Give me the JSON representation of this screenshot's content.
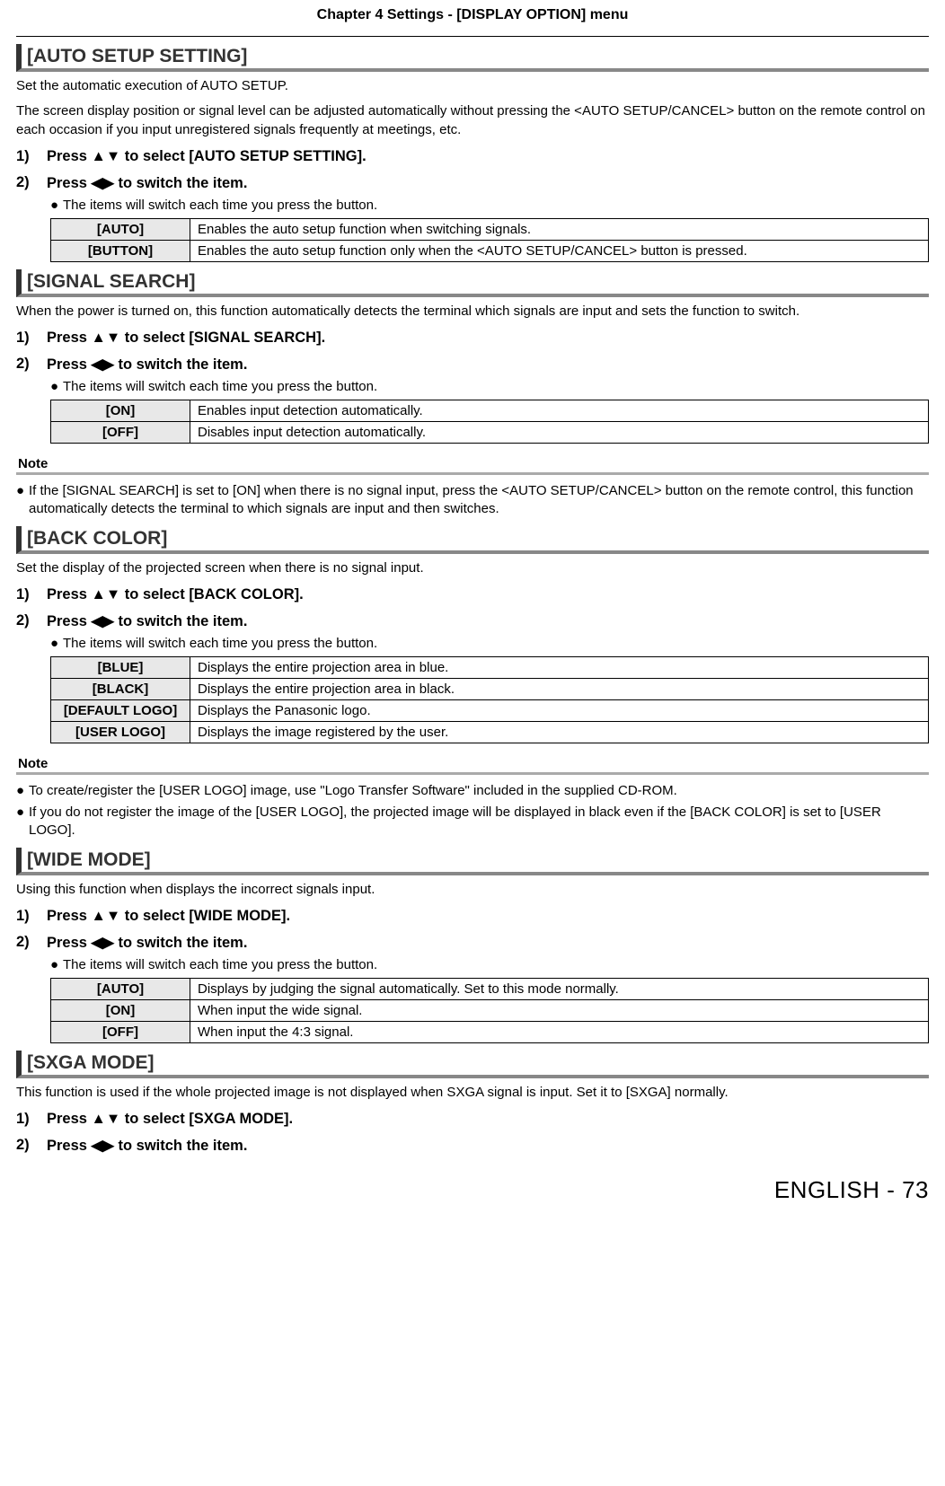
{
  "chapter_header": "Chapter 4   Settings - [DISPLAY OPTION] menu",
  "footer": "ENGLISH - 73",
  "arrows_ud": "▲▼",
  "arrows_lr": "◀▶",
  "note_label": "Note",
  "sections": {
    "auto_setup": {
      "title": "[AUTO SETUP SETTING]",
      "intro1": "Set the automatic execution of AUTO SETUP.",
      "intro2": "The screen display position or signal level can be adjusted automatically without pressing the <AUTO SETUP/CANCEL> button on the remote control on each occasion if you input unregistered signals frequently at meetings, etc.",
      "step1_num": "1)",
      "step1_text": "Press ▲▼ to select [AUTO SETUP SETTING].",
      "step2_num": "2)",
      "step2_text": "Press ◀▶ to switch the item.",
      "step2_bullet": "The items will switch each time you press the button.",
      "rows": [
        {
          "label": "[AUTO]",
          "desc": "Enables the auto setup function when switching signals."
        },
        {
          "label": "[BUTTON]",
          "desc": "Enables the auto setup function only when the <AUTO SETUP/CANCEL> button is pressed."
        }
      ]
    },
    "signal_search": {
      "title": "[SIGNAL SEARCH]",
      "intro": "When the power is turned on, this function automatically detects the terminal which signals are input and sets the function to switch.",
      "step1_num": "1)",
      "step1_text": "Press ▲▼ to select [SIGNAL SEARCH].",
      "step2_num": "2)",
      "step2_text": "Press ◀▶ to switch the item.",
      "step2_bullet": "The items will switch each time you press the button.",
      "rows": [
        {
          "label": "[ON]",
          "desc": "Enables input detection automatically."
        },
        {
          "label": "[OFF]",
          "desc": "Disables input detection automatically."
        }
      ],
      "note": "If the [SIGNAL SEARCH] is set to [ON] when there is no signal input, press the <AUTO SETUP/CANCEL> button on the remote control, this function automatically detects the terminal to which signals are input and then switches."
    },
    "back_color": {
      "title": "[BACK COLOR]",
      "intro": "Set the display of the projected screen when there is no signal input.",
      "step1_num": "1)",
      "step1_text": "Press ▲▼ to select [BACK COLOR].",
      "step2_num": "2)",
      "step2_text": "Press ◀▶ to switch the item.",
      "step2_bullet": "The items will switch each time you press the button.",
      "rows": [
        {
          "label": "[BLUE]",
          "desc": "Displays the entire projection area in blue."
        },
        {
          "label": "[BLACK]",
          "desc": "Displays the entire projection area in black."
        },
        {
          "label": "[DEFAULT LOGO]",
          "desc": "Displays the Panasonic logo."
        },
        {
          "label": "[USER LOGO]",
          "desc": "Displays the image registered by the user."
        }
      ],
      "note1": "To create/register the [USER LOGO] image, use \"Logo Transfer Software\" included in the supplied CD-ROM.",
      "note2": "If you do not register the image of the [USER LOGO], the projected image will be displayed in black even if the [BACK COLOR] is set to [USER LOGO]."
    },
    "wide_mode": {
      "title": "[WIDE MODE]",
      "intro": "Using this function when displays the incorrect signals input.",
      "step1_num": "1)",
      "step1_text": "Press ▲▼ to select [WIDE MODE].",
      "step2_num": "2)",
      "step2_text": "Press ◀▶ to switch the item.",
      "step2_bullet": "The items will switch each time you press the button.",
      "rows": [
        {
          "label": "[AUTO]",
          "desc": "Displays by judging the signal automatically. Set to this mode normally."
        },
        {
          "label": "[ON]",
          "desc": "When input the wide signal."
        },
        {
          "label": "[OFF]",
          "desc": "When input the 4:3 signal."
        }
      ]
    },
    "sxga_mode": {
      "title": "[SXGA MODE]",
      "intro": "This function is used if the whole projected image is not displayed when SXGA signal is input. Set it to [SXGA] normally.",
      "step1_num": "1)",
      "step1_text": "Press ▲▼ to select [SXGA MODE].",
      "step2_num": "2)",
      "step2_text": "Press ◀▶ to switch the item."
    }
  }
}
